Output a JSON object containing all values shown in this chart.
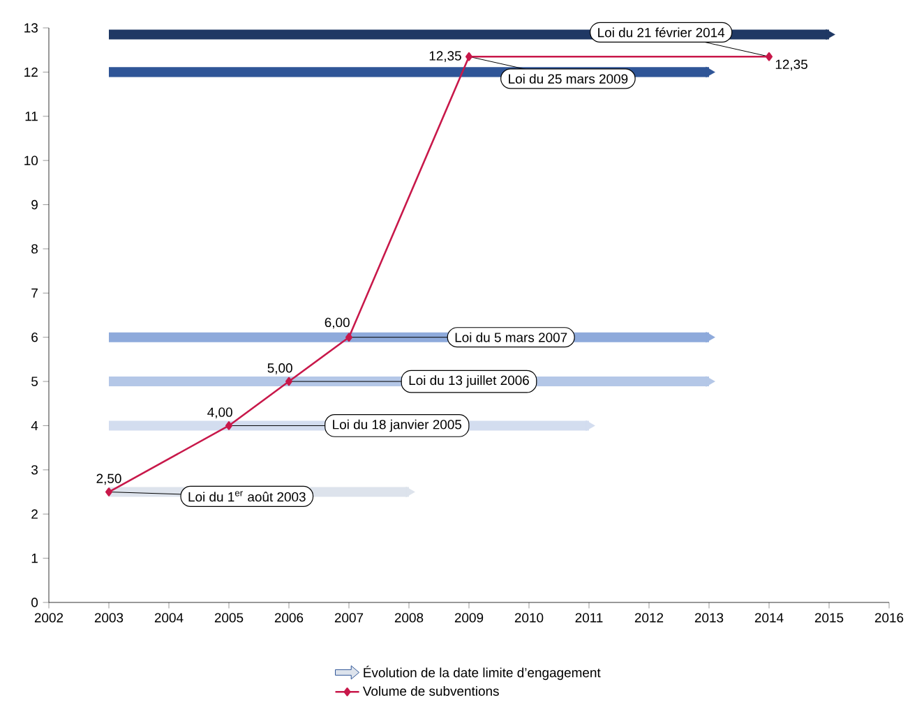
{
  "chart_data": {
    "type": "line",
    "series": [
      {
        "name": "Volume de subventions",
        "color": "#c8184a",
        "marker": "diamond",
        "x": [
          2003,
          2005,
          2006,
          2007,
          2009,
          2014
        ],
        "values": [
          2.5,
          4,
          5,
          6,
          12.35,
          12.35
        ],
        "value_labels": [
          "2,50",
          "4,00",
          "5,00",
          "6,00",
          "12,35",
          "12,35"
        ]
      },
      {
        "name": "Évolution de la date limite d’engagement",
        "type": "line",
        "marker": "triangle",
        "color": "#dde3ec",
        "x": [
          2003,
          2008
        ],
        "values": [
          2.5,
          2.5
        ]
      },
      {
        "type": "line",
        "marker": "triangle",
        "color": "#d3ddef",
        "x": [
          2003,
          2011
        ],
        "values": [
          4,
          4
        ]
      },
      {
        "type": "line",
        "marker": "triangle",
        "color": "#b4c7e7",
        "x": [
          2003,
          2013
        ],
        "values": [
          5,
          5
        ]
      },
      {
        "type": "line",
        "marker": "triangle",
        "color": "#8eaadb",
        "x": [
          2003,
          2013
        ],
        "values": [
          6,
          6
        ]
      },
      {
        "type": "line",
        "marker": "triangle",
        "color": "#2f5597",
        "x": [
          2003,
          2013
        ],
        "values": [
          12,
          12
        ]
      },
      {
        "type": "line",
        "marker": "triangle",
        "color": "#1f3864",
        "x": [
          2003,
          2015
        ],
        "values": [
          12.85,
          12.85
        ]
      }
    ],
    "annotations": [
      {
        "text": "Loi du 1$^{er}$ août 2003",
        "x": 2003,
        "y": 2.5
      },
      {
        "text": "Loi du 18 janvier 2005",
        "x": 2005,
        "y": 4
      },
      {
        "text": "Loi du 13 juillet 2006",
        "x": 2006,
        "y": 5
      },
      {
        "text": "Loi du 5 mars 2007",
        "x": 2007,
        "y": 6
      },
      {
        "text": "Loi du 25 mars 2009",
        "x": 2009,
        "y": 12.35
      },
      {
        "text": "Loi du 21 février 2014",
        "x": 2014,
        "y": 12.35
      }
    ],
    "xlim": [
      2002,
      2016
    ],
    "xticks": [
      2002,
      2003,
      2004,
      2005,
      2006,
      2007,
      2008,
      2009,
      2010,
      2011,
      2012,
      2013,
      2014,
      2015,
      2016
    ],
    "ylim": [
      0,
      13
    ],
    "yticks": [
      0,
      1,
      2,
      3,
      4,
      5,
      6,
      7,
      8,
      9,
      10,
      11,
      12,
      13
    ],
    "grid": false,
    "legend": "bottom"
  }
}
